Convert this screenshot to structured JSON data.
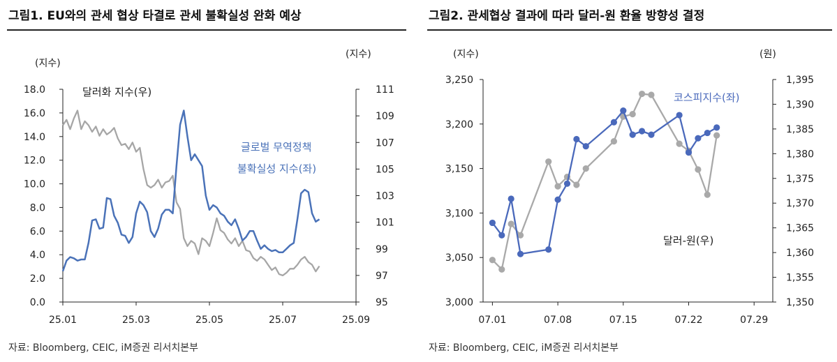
{
  "colors": {
    "blue": "#4a72b8",
    "gray": "#a6a6a6",
    "axis": "#222222",
    "dots_blue": "#4a69bb",
    "dots_gray": "#a9a9a9"
  },
  "figures": [
    {
      "title": "그림1.  EU와의 관세 협상 타결로 관세 불확실성 완화 예상",
      "source": "자료: Bloomberg, CEIC, iM증권 리서치본부"
    },
    {
      "title": "그림2.  관세협상 결과에 따라 달러-원 환율 방향성 결정",
      "source": "자료: Bloomberg, CEIC, iM증권 리서치본부"
    }
  ],
  "chart_data": [
    {
      "type": "line",
      "title": "EU와의 관세 협상 타결로 관세 불확실성 완화 예상",
      "left_axis_unit": "(지수)",
      "right_axis_unit": "(지수)",
      "x_ticks": [
        "25.01",
        "25.03",
        "25.05",
        "25.07",
        "25.09"
      ],
      "left_ticks": [
        "0.0",
        "2.0",
        "4.0",
        "6.0",
        "8.0",
        "10.0",
        "12.0",
        "14.0",
        "16.0",
        "18.0"
      ],
      "right_ticks": [
        "95",
        "97",
        "99",
        "101",
        "103",
        "105",
        "107",
        "109",
        "111"
      ],
      "ylim_left": [
        0,
        18
      ],
      "ylim_right": [
        95,
        111
      ],
      "xlim_months": [
        0,
        8
      ],
      "series": [
        {
          "name": "글로벌 무역정책 불확실성 지수(좌)",
          "label_lines": [
            "글로벌 무역정책",
            "불확실성 지수(좌)"
          ],
          "axis": "left",
          "x": [
            0,
            0.1,
            0.2,
            0.3,
            0.4,
            0.5,
            0.6,
            0.7,
            0.8,
            0.9,
            1.0,
            1.1,
            1.2,
            1.3,
            1.4,
            1.5,
            1.6,
            1.7,
            1.8,
            1.9,
            2.0,
            2.1,
            2.2,
            2.3,
            2.4,
            2.5,
            2.6,
            2.7,
            2.8,
            2.9,
            3.0,
            3.1,
            3.2,
            3.3,
            3.4,
            3.5,
            3.6,
            3.7,
            3.8,
            3.9,
            4.0,
            4.1,
            4.2,
            4.3,
            4.4,
            4.5,
            4.6,
            4.7,
            4.8,
            4.9,
            5.0,
            5.1,
            5.2,
            5.3,
            5.4,
            5.5,
            5.6,
            5.7,
            5.8,
            5.9,
            6.0,
            6.1,
            6.2,
            6.3,
            6.4,
            6.5,
            6.6,
            6.7,
            6.8,
            6.9,
            7.0
          ],
          "values": [
            2.6,
            3.5,
            3.8,
            3.7,
            3.5,
            3.6,
            3.6,
            5.0,
            6.9,
            7.0,
            6.2,
            6.3,
            8.8,
            8.7,
            7.3,
            6.7,
            5.7,
            5.6,
            5.0,
            5.5,
            7.5,
            8.5,
            8.2,
            7.6,
            6.0,
            5.5,
            6.2,
            7.4,
            7.8,
            7.8,
            7.5,
            11.5,
            15.0,
            16.2,
            14.0,
            12.0,
            12.5,
            12.0,
            11.5,
            9.0,
            7.8,
            8.2,
            8.0,
            7.5,
            7.3,
            6.8,
            6.5,
            7.0,
            6.2,
            5.2,
            5.5,
            6.0,
            6.0,
            5.2,
            4.5,
            4.8,
            4.5,
            4.3,
            4.4,
            4.2,
            4.2,
            4.5,
            4.8,
            5.0,
            7.0,
            9.2,
            9.5,
            9.3,
            7.5,
            6.8,
            7.0
          ]
        },
        {
          "name": "달러화 지수(우)",
          "label_lines": [
            "달러화 지수(우)"
          ],
          "axis": "right",
          "x": [
            0,
            0.1,
            0.2,
            0.3,
            0.4,
            0.5,
            0.6,
            0.7,
            0.8,
            0.9,
            1.0,
            1.1,
            1.2,
            1.3,
            1.4,
            1.5,
            1.6,
            1.7,
            1.8,
            1.9,
            2.0,
            2.1,
            2.2,
            2.3,
            2.4,
            2.5,
            2.6,
            2.7,
            2.8,
            2.9,
            3.0,
            3.1,
            3.2,
            3.3,
            3.4,
            3.5,
            3.6,
            3.7,
            3.8,
            3.9,
            4.0,
            4.1,
            4.2,
            4.3,
            4.4,
            4.5,
            4.6,
            4.7,
            4.8,
            4.9,
            5.0,
            5.1,
            5.2,
            5.3,
            5.4,
            5.5,
            5.6,
            5.7,
            5.8,
            5.9,
            6.0,
            6.1,
            6.2,
            6.3,
            6.4,
            6.5,
            6.6,
            6.7,
            6.8,
            6.9,
            7.0
          ],
          "values": [
            108.3,
            108.7,
            108.0,
            108.8,
            109.4,
            108.0,
            108.6,
            108.3,
            107.8,
            108.2,
            107.5,
            108.0,
            107.6,
            107.8,
            108.1,
            107.3,
            106.8,
            106.9,
            106.5,
            107.0,
            106.3,
            106.6,
            105.0,
            103.8,
            103.6,
            103.8,
            104.2,
            103.6,
            104.0,
            104.1,
            104.5,
            102.5,
            102.0,
            99.8,
            99.2,
            99.6,
            99.4,
            98.6,
            99.8,
            99.6,
            99.2,
            100.2,
            101.3,
            100.4,
            100.2,
            99.7,
            99.4,
            99.8,
            99.2,
            99.6,
            98.9,
            98.8,
            98.3,
            98.1,
            98.4,
            98.2,
            97.8,
            97.4,
            97.6,
            97.1,
            97.0,
            97.2,
            97.5,
            97.5,
            97.8,
            98.2,
            98.4,
            98.0,
            97.8,
            97.3,
            97.7
          ]
        }
      ]
    },
    {
      "type": "line",
      "title": "관세협상 결과에 따라 달러-원 환율 방향성 결정",
      "left_axis_unit": "(지수)",
      "right_axis_unit": "(원)",
      "x_ticks": [
        "07.01",
        "07.08",
        "07.15",
        "07.22",
        "07.29"
      ],
      "left_ticks": [
        "3,000",
        "3,050",
        "3,100",
        "3,150",
        "3,200",
        "3,250"
      ],
      "right_ticks": [
        "1,350",
        "1,355",
        "1,360",
        "1,365",
        "1,370",
        "1,375",
        "1,380",
        "1,385",
        "1,390",
        "1,395"
      ],
      "ylim_left": [
        3000,
        3250
      ],
      "ylim_right": [
        1350,
        1395
      ],
      "xlim_days": [
        0,
        31
      ],
      "series": [
        {
          "name": "코스피지수(좌)",
          "label_lines": [
            "코스피지수(좌)"
          ],
          "axis": "left",
          "x": [
            1,
            2,
            3,
            4,
            7,
            8,
            9,
            10,
            11,
            14,
            15,
            16,
            17,
            18,
            21,
            22,
            23,
            24,
            25
          ],
          "values": [
            3089,
            3075,
            3116,
            3054,
            3059,
            3115,
            3133,
            3183,
            3175,
            3202,
            3215,
            3188,
            3192,
            3188,
            3210,
            3168,
            3184,
            3190,
            3196
          ]
        },
        {
          "name": "달러-원(우)",
          "label_lines": [
            "달러-원(우)"
          ],
          "axis": "right",
          "x": [
            1,
            2,
            3,
            4,
            7,
            8,
            9,
            10,
            11,
            14,
            15,
            16,
            17,
            18,
            21,
            22,
            23,
            24,
            25
          ],
          "values": [
            1358.5,
            1356.6,
            1365.8,
            1363.5,
            1378.4,
            1373.4,
            1375.3,
            1373.7,
            1377.0,
            1382.5,
            1387.5,
            1388.0,
            1392.1,
            1391.9,
            1382.0,
            1380.6,
            1376.8,
            1371.7,
            1383.7
          ]
        }
      ]
    }
  ]
}
